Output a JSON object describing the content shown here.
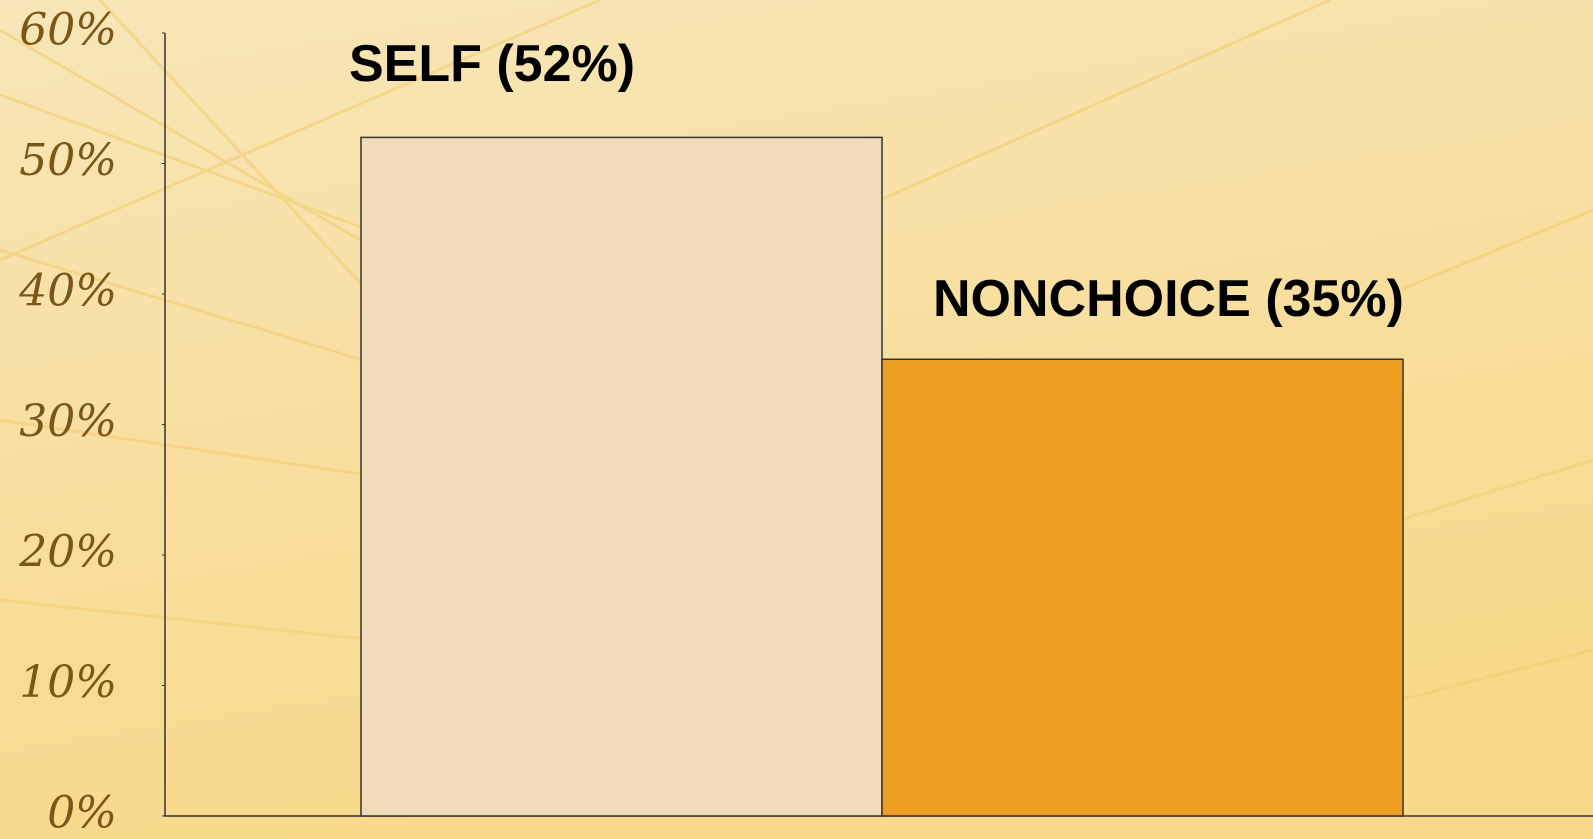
{
  "chart_data": {
    "type": "bar",
    "values": [
      52,
      35
    ],
    "value_labels": [
      "SELF (52%)",
      "NONCHOICE (35%)"
    ],
    "colors": [
      "#f2dbb9",
      "#ee9e22"
    ],
    "ylim": [
      0,
      60
    ],
    "yticks": [
      {
        "value": 0,
        "label": "0%"
      },
      {
        "value": 10,
        "label": "10%"
      },
      {
        "value": 20,
        "label": "20%"
      },
      {
        "value": 30,
        "label": "30%"
      },
      {
        "value": 40,
        "label": "40%"
      },
      {
        "value": 50,
        "label": "50%"
      },
      {
        "value": 60,
        "label": "60%"
      }
    ],
    "grid": false
  }
}
